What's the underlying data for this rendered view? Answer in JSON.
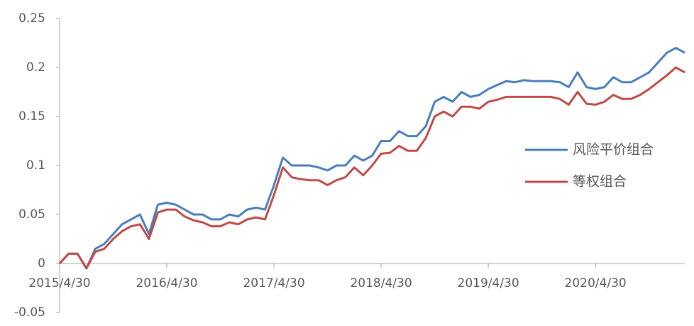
{
  "chart_data": {
    "type": "line",
    "x": [
      "2015/4/30",
      "2015/5/31",
      "2015/6/30",
      "2015/7/31",
      "2015/8/31",
      "2015/9/30",
      "2015/10/31",
      "2015/11/30",
      "2015/12/31",
      "2016/1/31",
      "2016/2/29",
      "2016/3/31",
      "2016/4/30",
      "2016/5/31",
      "2016/6/30",
      "2016/7/31",
      "2016/8/31",
      "2016/9/30",
      "2016/10/31",
      "2016/11/30",
      "2016/12/31",
      "2017/1/31",
      "2017/2/28",
      "2017/3/31",
      "2017/4/30",
      "2017/5/31",
      "2017/6/30",
      "2017/7/31",
      "2017/8/31",
      "2017/9/30",
      "2017/10/31",
      "2017/11/30",
      "2017/12/31",
      "2018/1/31",
      "2018/2/28",
      "2018/3/31",
      "2018/4/30",
      "2018/5/31",
      "2018/6/30",
      "2018/7/31",
      "2018/8/31",
      "2018/9/30",
      "2018/10/31",
      "2018/11/30",
      "2018/12/31",
      "2019/1/31",
      "2019/2/28",
      "2019/3/31",
      "2019/4/30",
      "2019/5/31",
      "2019/6/30",
      "2019/7/31",
      "2019/8/31",
      "2019/9/30",
      "2019/10/31",
      "2019/11/30",
      "2019/12/31",
      "2020/1/31",
      "2020/2/29",
      "2020/3/31",
      "2020/4/30",
      "2020/5/31",
      "2020/6/30",
      "2020/7/31",
      "2020/8/31",
      "2020/9/30",
      "2020/10/31",
      "2020/11/30",
      "2020/12/31",
      "2021/1/31",
      "2021/2/28"
    ],
    "series": [
      {
        "name": "风险平价组合",
        "color": "#4a7ebb",
        "values": [
          0,
          0.01,
          0.01,
          -0.005,
          0.015,
          0.02,
          0.03,
          0.04,
          0.045,
          0.05,
          0.03,
          0.06,
          0.062,
          0.06,
          0.055,
          0.05,
          0.05,
          0.045,
          0.045,
          0.05,
          0.048,
          0.055,
          0.057,
          0.055,
          0.08,
          0.108,
          0.1,
          0.1,
          0.1,
          0.098,
          0.095,
          0.1,
          0.1,
          0.11,
          0.105,
          0.11,
          0.125,
          0.125,
          0.135,
          0.13,
          0.13,
          0.14,
          0.165,
          0.17,
          0.165,
          0.175,
          0.17,
          0.172,
          0.178,
          0.182,
          0.186,
          0.185,
          0.187,
          0.186,
          0.186,
          0.186,
          0.185,
          0.18,
          0.195,
          0.18,
          0.178,
          0.18,
          0.19,
          0.185,
          0.185,
          0.19,
          0.195,
          0.205,
          0.215,
          0.22,
          0.215
        ]
      },
      {
        "name": "等权组合",
        "color": "#be4b48",
        "values": [
          0,
          0.01,
          0.01,
          -0.005,
          0.012,
          0.015,
          0.025,
          0.033,
          0.038,
          0.04,
          0.025,
          0.052,
          0.055,
          0.055,
          0.048,
          0.044,
          0.042,
          0.038,
          0.038,
          0.042,
          0.04,
          0.045,
          0.047,
          0.045,
          0.07,
          0.098,
          0.088,
          0.086,
          0.085,
          0.085,
          0.08,
          0.085,
          0.088,
          0.098,
          0.09,
          0.1,
          0.112,
          0.113,
          0.12,
          0.115,
          0.115,
          0.128,
          0.15,
          0.155,
          0.15,
          0.16,
          0.16,
          0.158,
          0.165,
          0.167,
          0.17,
          0.17,
          0.17,
          0.17,
          0.17,
          0.17,
          0.168,
          0.162,
          0.175,
          0.163,
          0.162,
          0.165,
          0.172,
          0.168,
          0.168,
          0.172,
          0.178,
          0.185,
          0.192,
          0.2,
          0.195
        ]
      }
    ],
    "xticks": [
      "2015/4/30",
      "2016/4/30",
      "2017/4/30",
      "2018/4/30",
      "2019/4/30",
      "2020/4/30"
    ],
    "ylim": [
      -0.05,
      0.25
    ],
    "yticks": [
      -0.05,
      0,
      0.05,
      0.1,
      0.15,
      0.2,
      0.25
    ],
    "legend": "right"
  }
}
